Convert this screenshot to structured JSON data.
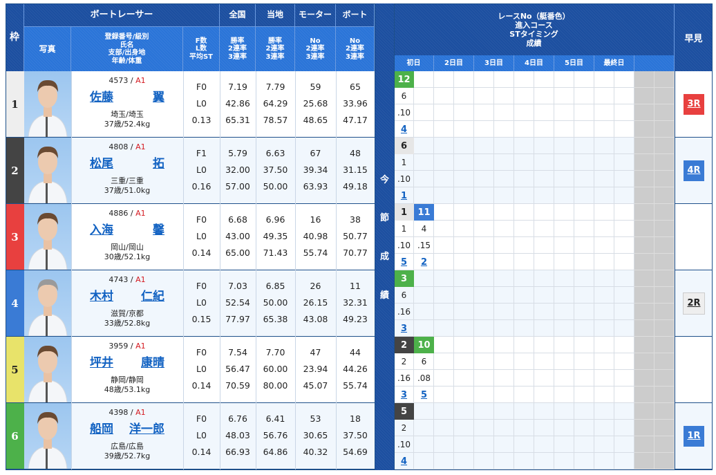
{
  "header": {
    "waku": "枠",
    "boat_racer": "ボートレーサー",
    "photo": "写真",
    "profile_lines": [
      "登録番号/級別",
      "氏名",
      "支部/出身地",
      "年齢/体重"
    ],
    "fl_lines": [
      "F数",
      "L数",
      "平均ST"
    ],
    "national": {
      "title": "全国",
      "lines": [
        "勝率",
        "2連率",
        "3連率"
      ]
    },
    "local": {
      "title": "当地",
      "lines": [
        "勝率",
        "2連率",
        "3連率"
      ]
    },
    "motor": {
      "title": "モーター",
      "lines": [
        "No",
        "2連率",
        "3連率"
      ]
    },
    "boat": {
      "title": "ボート",
      "lines": [
        "No",
        "2連率",
        "3連率"
      ]
    },
    "current_series_vertical": [
      "今",
      "節",
      "成",
      "績"
    ],
    "race_info_lines": [
      "レースNo（艇番色）",
      "進入コース",
      "STタイミング",
      "成績"
    ],
    "days": [
      "初日",
      "2日目",
      "3日目",
      "4日目",
      "5日目",
      "最終日",
      ""
    ],
    "hayami": "早見"
  },
  "colors": {
    "waku": [
      "#eeeeee",
      "#444444",
      "#e8403f",
      "#3a7bd5",
      "#e8e36a",
      "#4db14a"
    ],
    "waku_text": [
      "#222222",
      "#ffffff",
      "#ffffff",
      "#ffffff",
      "#222222",
      "#ffffff"
    ],
    "header_dark": "#1c4fa0",
    "header_light": "#2a74d8",
    "link": "#1262c2",
    "class_red": "#d4181f"
  },
  "racers": [
    {
      "waku": "1",
      "reg_no": "4573",
      "sep": " / ",
      "class": "A1",
      "name_family": "佐藤",
      "name_given": "翼",
      "branch": "埼玉/埼玉",
      "age_weight": "37歳/52.4kg",
      "f": "F0",
      "l": "L0",
      "avg_st": "0.13",
      "national": [
        "7.19",
        "42.86",
        "65.31"
      ],
      "local": [
        "7.79",
        "64.29",
        "78.57"
      ],
      "motor": [
        "59",
        "25.68",
        "48.65"
      ],
      "boat": [
        "65",
        "33.96",
        "47.17"
      ],
      "results": [
        {
          "race": "12",
          "race_color": "#4db14a",
          "race_text": "#ffffff",
          "course": "6",
          "st": ".10",
          "rank": "4"
        }
      ],
      "hayami": {
        "label": "3R",
        "bg": "#e8403f",
        "fg": "#ffffff"
      }
    },
    {
      "waku": "2",
      "reg_no": "4808",
      "sep": " / ",
      "class": "A1",
      "name_family": "松尾",
      "name_given": "拓",
      "branch": "三重/三重",
      "age_weight": "37歳/51.0kg",
      "f": "F1",
      "l": "L0",
      "avg_st": "0.16",
      "national": [
        "5.79",
        "32.00",
        "57.00"
      ],
      "local": [
        "6.63",
        "37.50",
        "50.00"
      ],
      "motor": [
        "67",
        "39.34",
        "63.93"
      ],
      "boat": [
        "48",
        "31.15",
        "49.18"
      ],
      "results": [
        {
          "race": "6",
          "race_color": "#e6e6e6",
          "race_text": "#222222",
          "course": "1",
          "st": ".10",
          "rank": "1"
        }
      ],
      "hayami": {
        "label": "4R",
        "bg": "#3a7bd5",
        "fg": "#ffffff"
      }
    },
    {
      "waku": "3",
      "reg_no": "4886",
      "sep": " / ",
      "class": "A1",
      "name_family": "入海",
      "name_given": "馨",
      "branch": "岡山/岡山",
      "age_weight": "30歳/52.1kg",
      "f": "F0",
      "l": "L0",
      "avg_st": "0.14",
      "national": [
        "6.68",
        "43.00",
        "65.00"
      ],
      "local": [
        "6.96",
        "49.35",
        "71.43"
      ],
      "motor": [
        "16",
        "40.98",
        "55.74"
      ],
      "boat": [
        "38",
        "50.77",
        "70.77"
      ],
      "results": [
        {
          "race": "1",
          "race_color": "#e6e6e6",
          "race_text": "#222222",
          "course": "1",
          "st": ".10",
          "rank": "5"
        },
        {
          "race": "11",
          "race_color": "#3a7bd5",
          "race_text": "#ffffff",
          "course": "4",
          "st": ".15",
          "rank": "2"
        }
      ],
      "hayami": null
    },
    {
      "waku": "4",
      "reg_no": "4743",
      "sep": " / ",
      "class": "A1",
      "name_family": "木村",
      "name_given": "仁紀",
      "branch": "滋賀/京都",
      "age_weight": "33歳/52.8kg",
      "f": "F0",
      "l": "L0",
      "avg_st": "0.15",
      "national": [
        "7.03",
        "52.54",
        "77.97"
      ],
      "local": [
        "6.85",
        "50.00",
        "65.38"
      ],
      "motor": [
        "26",
        "26.15",
        "43.08"
      ],
      "boat": [
        "11",
        "32.31",
        "49.23"
      ],
      "results": [
        {
          "race": "3",
          "race_color": "#4db14a",
          "race_text": "#ffffff",
          "course": "6",
          "st": ".16",
          "rank": "3"
        }
      ],
      "hayami": {
        "label": "2R",
        "bg": "#eeeeee",
        "fg": "#222222"
      }
    },
    {
      "waku": "5",
      "reg_no": "3959",
      "sep": " / ",
      "class": "A1",
      "name_family": "坪井",
      "name_given": "康晴",
      "branch": "静岡/静岡",
      "age_weight": "48歳/53.1kg",
      "f": "F0",
      "l": "L0",
      "avg_st": "0.14",
      "national": [
        "7.54",
        "56.47",
        "70.59"
      ],
      "local": [
        "7.70",
        "60.00",
        "80.00"
      ],
      "motor": [
        "47",
        "23.94",
        "45.07"
      ],
      "boat": [
        "44",
        "44.26",
        "55.74"
      ],
      "results": [
        {
          "race": "2",
          "race_color": "#444444",
          "race_text": "#ffffff",
          "course": "2",
          "st": ".16",
          "rank": "3"
        },
        {
          "race": "10",
          "race_color": "#4db14a",
          "race_text": "#ffffff",
          "course": "6",
          "st": ".08",
          "rank": "5"
        }
      ],
      "hayami": null
    },
    {
      "waku": "6",
      "reg_no": "4398",
      "sep": " / ",
      "class": "A1",
      "name_family": "船岡",
      "name_given": "洋一郎",
      "branch": "広島/広島",
      "age_weight": "39歳/52.7kg",
      "f": "F0",
      "l": "L0",
      "avg_st": "0.14",
      "national": [
        "6.76",
        "48.03",
        "66.93"
      ],
      "local": [
        "6.41",
        "56.76",
        "64.86"
      ],
      "motor": [
        "53",
        "30.65",
        "40.32"
      ],
      "boat": [
        "18",
        "37.50",
        "54.69"
      ],
      "results": [
        {
          "race": "5",
          "race_color": "#444444",
          "race_text": "#ffffff",
          "course": "2",
          "st": ".10",
          "rank": "4"
        }
      ],
      "hayami": {
        "label": "1R",
        "bg": "#3a7bd5",
        "fg": "#ffffff"
      }
    }
  ]
}
